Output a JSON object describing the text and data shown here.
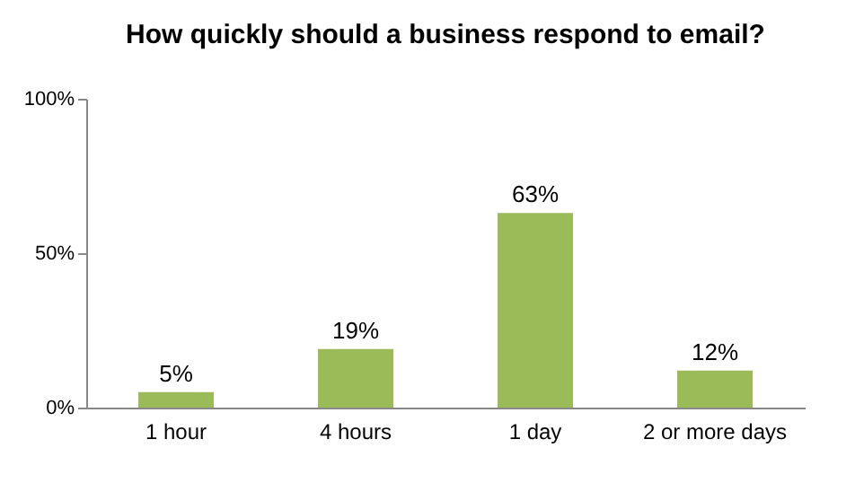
{
  "chart_data": {
    "type": "bar",
    "title": "How quickly should a business respond to email?",
    "categories": [
      "1 hour",
      "4 hours",
      "1 day",
      "2 or more days"
    ],
    "values": [
      5,
      19,
      63,
      12
    ],
    "color": "#9bbb59",
    "value_labels": [
      "5%",
      "19%",
      "63%",
      "12%"
    ],
    "ylim": [
      0,
      100
    ],
    "yticks": [
      {
        "value": 0,
        "label": "0%"
      },
      {
        "value": 50,
        "label": "50%"
      },
      {
        "value": 100,
        "label": "100%"
      }
    ],
    "grid": false
  }
}
